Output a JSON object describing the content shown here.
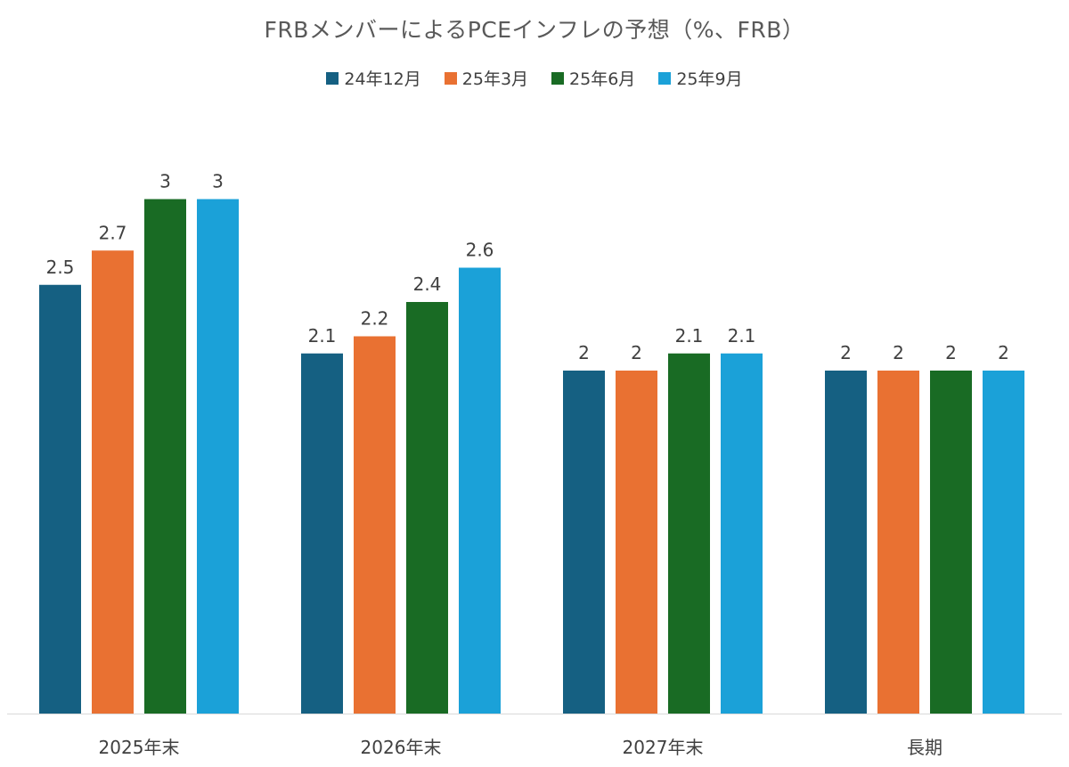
{
  "chart_data": {
    "type": "bar",
    "title": "FRBメンバーによるPCEインフレの予想（%、FRB）",
    "categories": [
      "2025年末",
      "2026年末",
      "2027年末",
      "長期"
    ],
    "series": [
      {
        "name": "24年12月",
        "color": "#156082",
        "values": [
          2.5,
          2.1,
          2.0,
          2.0
        ]
      },
      {
        "name": "25年3月",
        "color": "#E97132",
        "values": [
          2.7,
          2.2,
          2.0,
          2.0
        ]
      },
      {
        "name": "25年6月",
        "color": "#196B24",
        "values": [
          3.0,
          2.4,
          2.1,
          2.0
        ]
      },
      {
        "name": "25年9月",
        "color": "#1BA1D8",
        "values": [
          3.0,
          2.6,
          2.1,
          2.0
        ]
      }
    ],
    "data_labels": [
      [
        "2.5",
        "2.1",
        "2",
        "2"
      ],
      [
        "2.7",
        "2.2",
        "2",
        "2"
      ],
      [
        "3",
        "2.4",
        "2.1",
        "2"
      ],
      [
        "3",
        "2.6",
        "2.1",
        "2"
      ]
    ],
    "xlabel": "",
    "ylabel": "",
    "ylim": [
      0,
      3.5
    ],
    "grid": false,
    "legend_position": "top-center"
  }
}
